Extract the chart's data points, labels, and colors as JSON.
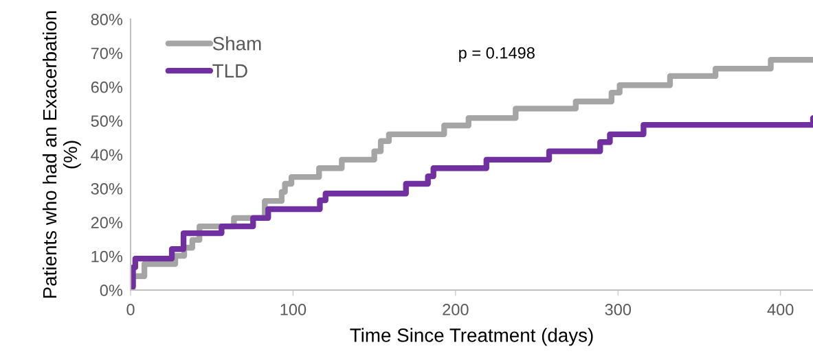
{
  "chart_data": {
    "type": "step",
    "xlabel": "Time Since Treatment (days)",
    "ylabel": "Patients who had an Exacerbation (%)",
    "annotations": [
      "p = 0.1498"
    ],
    "series": [
      {
        "name": "Sham",
        "color": "#a5a5a5",
        "x": [
          0,
          1.3,
          8.5,
          27.5,
          33,
          38,
          42.4,
          63.6,
          82.6,
          93,
          95,
          99,
          116,
          130,
          150,
          154,
          159,
          193,
          208,
          237,
          274,
          296,
          301,
          332,
          360,
          394,
          420
        ],
        "values": [
          0,
          4.1,
          7.7,
          10.1,
          12.5,
          14.8,
          18.8,
          21.3,
          26.3,
          29,
          31.4,
          33.4,
          36,
          38.5,
          41,
          44,
          46,
          48.6,
          50.8,
          53.6,
          55.7,
          58.3,
          60.5,
          63.2,
          65.4,
          68,
          68
        ]
      },
      {
        "name": "TLD",
        "color": "#7030a0",
        "x": [
          0,
          0.5,
          1.5,
          2.9,
          25.4,
          32.6,
          56,
          75.4,
          84.7,
          116.5,
          120,
          169.5,
          183,
          186.4,
          219,
          257.6,
          289,
          295,
          315.7,
          420
        ],
        "values": [
          0,
          1,
          6.7,
          9.3,
          12.1,
          16.8,
          18.8,
          21.3,
          23.9,
          26.5,
          28.5,
          31.4,
          33.6,
          36,
          38.5,
          41,
          43.7,
          46,
          48.8,
          50.8
        ]
      }
    ],
    "xlim": [
      0,
      420
    ],
    "xticks": [
      0,
      100,
      200,
      300,
      400
    ],
    "ylim": [
      0,
      80
    ],
    "yticks": [
      {
        "value": 0,
        "label": "0%"
      },
      {
        "value": 10,
        "label": "10%"
      },
      {
        "value": 20,
        "label": "20%"
      },
      {
        "value": 30,
        "label": "30%"
      },
      {
        "value": 40,
        "label": "40%"
      },
      {
        "value": 50,
        "label": "50%"
      },
      {
        "value": 60,
        "label": "60%"
      },
      {
        "value": 70,
        "label": "70%"
      },
      {
        "value": 80,
        "label": "80%"
      }
    ],
    "legend": "top left",
    "grid": false
  }
}
